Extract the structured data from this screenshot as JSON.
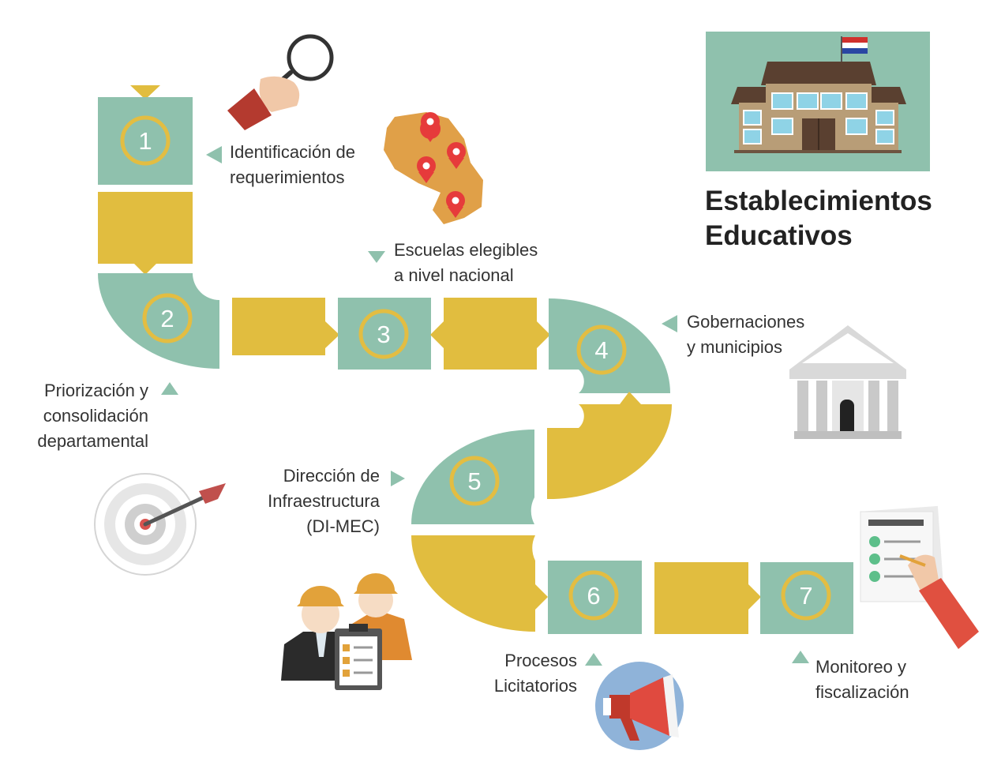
{
  "title": {
    "line1": "Establecimientos",
    "line2": "Educativos"
  },
  "steps": [
    {
      "number": "1",
      "label": [
        "Identificación de",
        "requerimientos"
      ]
    },
    {
      "number": "2",
      "label": [
        "Priorización y",
        "consolidación",
        "departamental"
      ]
    },
    {
      "number": "3",
      "label": [
        "Escuelas elegibles",
        "a nivel nacional"
      ]
    },
    {
      "number": "4",
      "label": [
        "Gobernaciones",
        "y municipios"
      ]
    },
    {
      "number": "5",
      "label": [
        "Dirección de",
        "Infraestructura",
        "(DI-MEC)"
      ]
    },
    {
      "number": "6",
      "label": [
        "Procesos",
        "Licitatorios"
      ]
    },
    {
      "number": "7",
      "label": [
        "Monitoreo y",
        "fiscalización"
      ]
    }
  ],
  "colors": {
    "teal": "#8fc1ad",
    "gold": "#e1bd3f",
    "ring": "#e3bd42",
    "arrow": "#8fc1ad",
    "text": "#333333"
  },
  "icons": [
    "magnifier-icon",
    "map-icon",
    "school-building-icon",
    "government-building-icon",
    "target-icon",
    "workers-icon",
    "megaphone-icon",
    "checklist-icon"
  ]
}
